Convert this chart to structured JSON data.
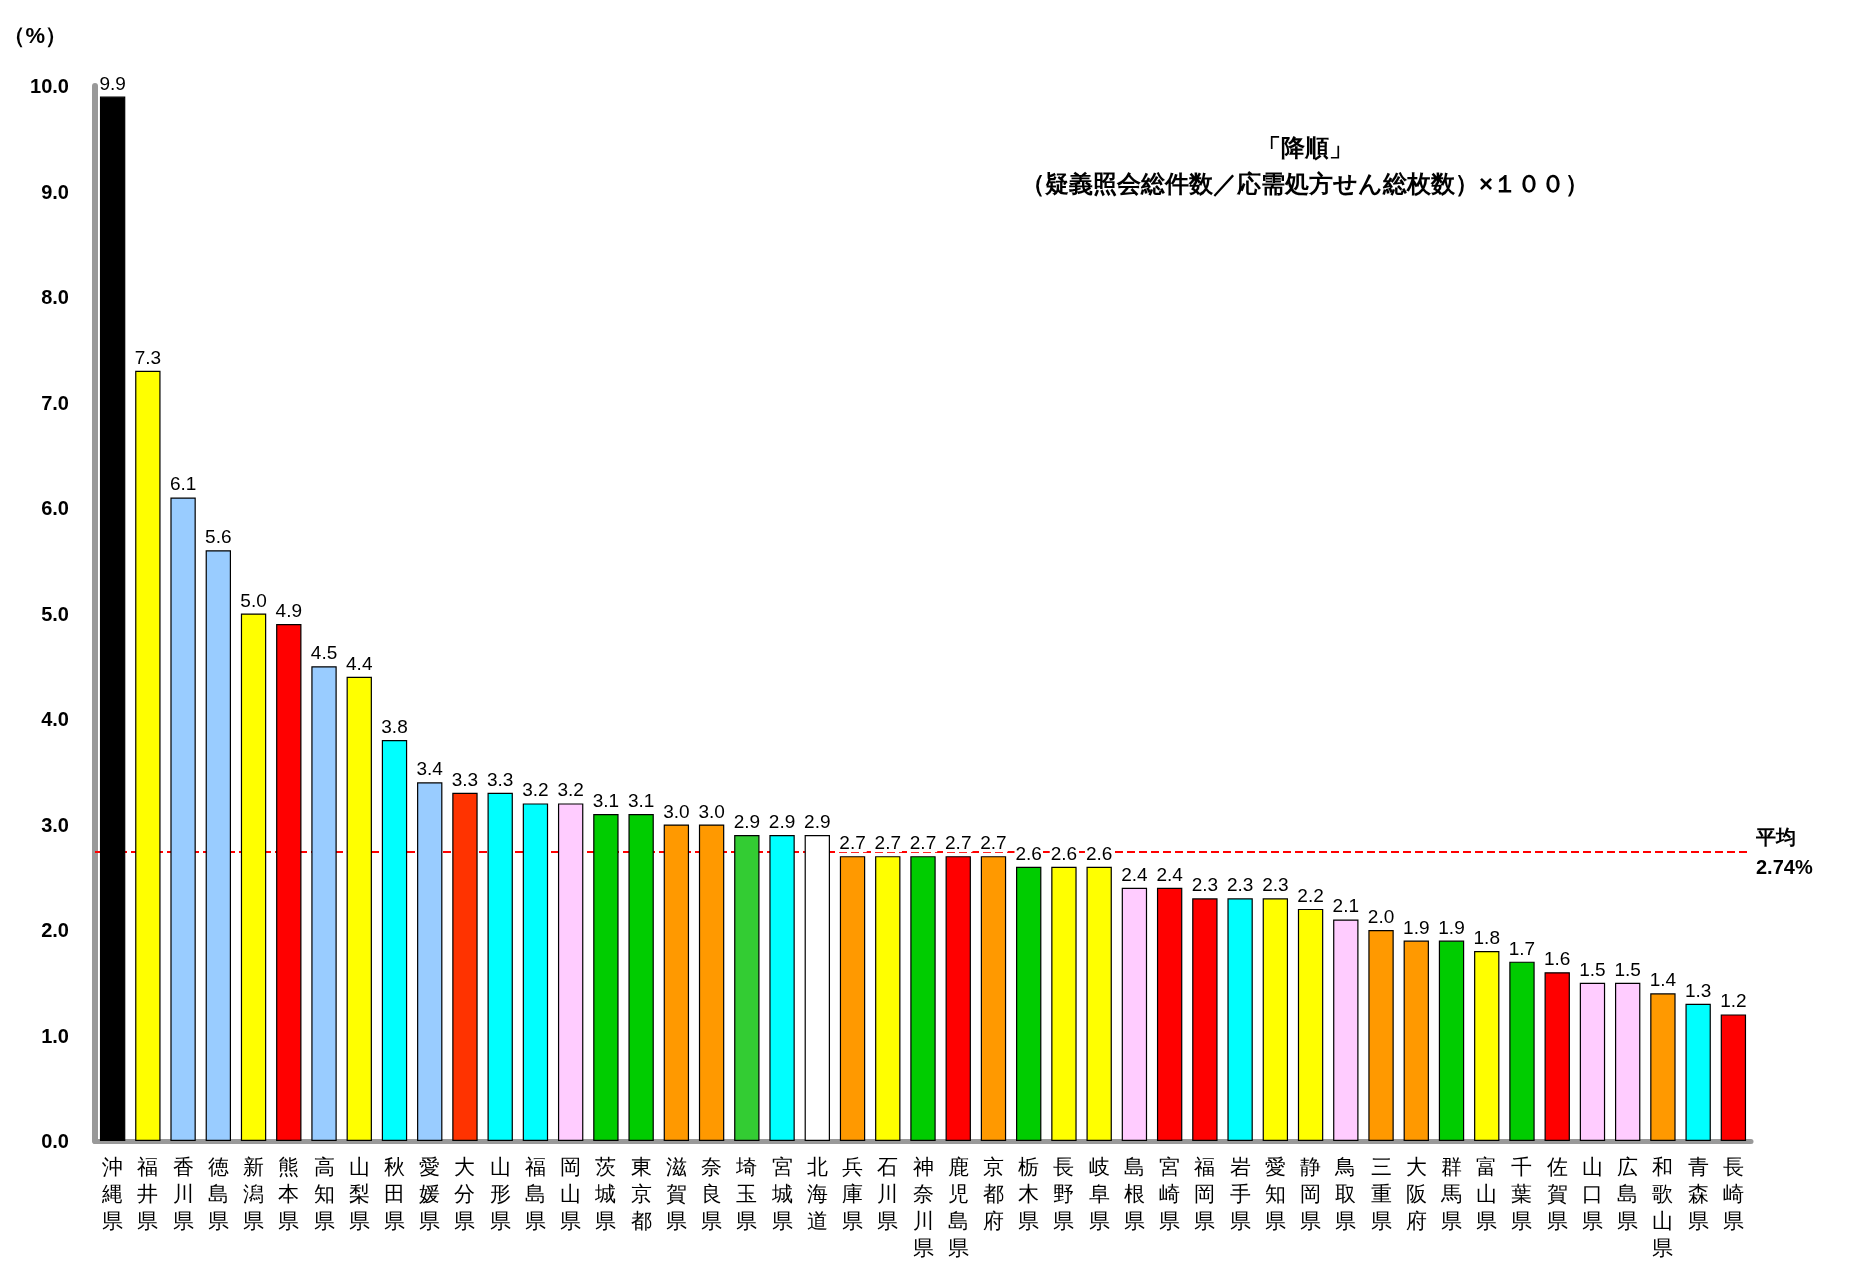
{
  "chart_data": {
    "type": "bar",
    "ylabel": "（%）",
    "annotations": [
      "「降順」",
      "（疑義照会総件数／応需処方せん総枚数）×１００）"
    ],
    "categories": [
      "沖縄県",
      "福井県",
      "香川県",
      "徳島県",
      "新潟県",
      "熊本県",
      "高知県",
      "山梨県",
      "秋田県",
      "愛媛県",
      "大分県",
      "山形県",
      "福島県",
      "岡山県",
      "茨城県",
      "東京都",
      "滋賀県",
      "奈良県",
      "埼玉県",
      "宮城県",
      "北海道",
      "兵庫県",
      "石川県",
      "神奈川県",
      "鹿児島県",
      "京都府",
      "栃木県",
      "長野県",
      "岐阜県",
      "島根県",
      "宮崎県",
      "福岡県",
      "岩手県",
      "愛知県",
      "静岡県",
      "鳥取県",
      "三重県",
      "大阪府",
      "群馬県",
      "富山県",
      "千葉県",
      "佐賀県",
      "山口県",
      "広島県",
      "和歌山県",
      "青森県",
      "長崎県"
    ],
    "values": [
      9.9,
      7.3,
      6.1,
      5.6,
      5.0,
      4.9,
      4.5,
      4.4,
      3.8,
      3.4,
      3.3,
      3.3,
      3.2,
      3.2,
      3.1,
      3.1,
      3.0,
      3.0,
      2.9,
      2.9,
      2.9,
      2.7,
      2.7,
      2.7,
      2.7,
      2.7,
      2.6,
      2.6,
      2.6,
      2.4,
      2.4,
      2.3,
      2.3,
      2.3,
      2.2,
      2.1,
      2.0,
      1.9,
      1.9,
      1.8,
      1.7,
      1.6,
      1.5,
      1.5,
      1.4,
      1.3,
      1.2
    ],
    "value_labels": [
      "9.9",
      "7.3",
      "6.1",
      "5.6",
      "5.0",
      "4.9",
      "4.5",
      "4.4",
      "3.8",
      "3.4",
      "3.3",
      "3.3",
      "3.2",
      "3.2",
      "3.1",
      "3.1",
      "3.0",
      "3.0",
      "2.9",
      "2.9",
      "2.9",
      "2.7",
      "2.7",
      "2.7",
      "2.7",
      "2.7",
      "2.6",
      "2.6",
      "2.6",
      "2.4",
      "2.4",
      "2.3",
      "2.3",
      "2.3",
      "2.2",
      "2.1",
      "2.0",
      "1.9",
      "1.9",
      "1.8",
      "1.7",
      "1.6",
      "1.5",
      "1.5",
      "1.4",
      "1.3",
      "1.2"
    ],
    "colors": [
      "#000000",
      "#ffff00",
      "#99ccff",
      "#99ccff",
      "#ffff00",
      "#ff0000",
      "#99ccff",
      "#ffff00",
      "#00ffff",
      "#99ccff",
      "#ff3300",
      "#00ffff",
      "#00ffff",
      "#ffccff",
      "#00cc00",
      "#00cc00",
      "#ff9900",
      "#ff9900",
      "#33cc33",
      "#00ffff",
      "#ffffff",
      "#ff9900",
      "#ffff00",
      "#00cc00",
      "#ff0000",
      "#ff9900",
      "#00cc00",
      "#ffff00",
      "#ffff00",
      "#ffccff",
      "#ff0000",
      "#ff0000",
      "#00ffff",
      "#ffff00",
      "#ffff00",
      "#ffccff",
      "#ff9900",
      "#ff9900",
      "#00cc00",
      "#ffff00",
      "#00cc00",
      "#ff0000",
      "#ffccff",
      "#ffccff",
      "#ff9900",
      "#00ffff",
      "#ff0000"
    ],
    "ylim": [
      0,
      10
    ],
    "yticks": [
      {
        "value": 0,
        "label": "0.0"
      },
      {
        "value": 1,
        "label": "1.0"
      },
      {
        "value": 2,
        "label": "2.0"
      },
      {
        "value": 3,
        "label": "3.0"
      },
      {
        "value": 4,
        "label": "4.0"
      },
      {
        "value": 5,
        "label": "5.0"
      },
      {
        "value": 6,
        "label": "6.0"
      },
      {
        "value": 7,
        "label": "7.0"
      },
      {
        "value": 8,
        "label": "8.0"
      },
      {
        "value": 9,
        "label": "9.0"
      },
      {
        "value": 10,
        "label": "10.0"
      }
    ],
    "ref_lines": [
      {
        "axis": "y",
        "value": 2.74,
        "label": "平均\n2.74%",
        "color": "#ff0000",
        "line_style": "dashed"
      }
    ]
  }
}
